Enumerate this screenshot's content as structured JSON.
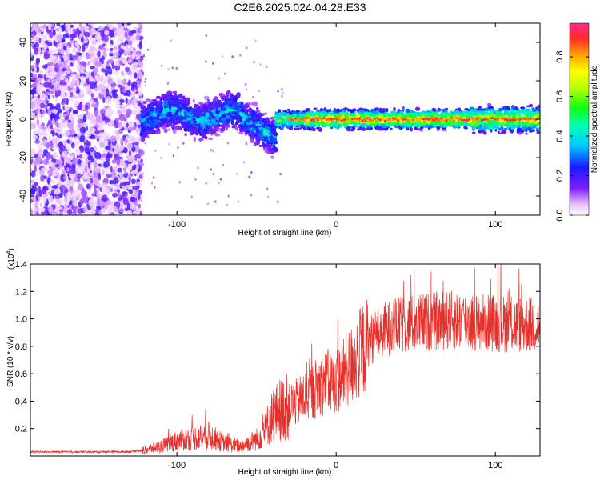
{
  "title": "C2E6.2025.024.04.28.E33",
  "chart_data": [
    {
      "type": "heatmap",
      "xlabel": "Height of straight line (km)",
      "ylabel": "Frequency (Hz)",
      "xlim": [
        -192,
        128
      ],
      "ylim": [
        -50,
        50
      ],
      "xticks": [
        -100,
        0,
        100
      ],
      "yticks": [
        -40,
        -20,
        0,
        20,
        40
      ],
      "colorbar": {
        "label": "Normalized spectral amplitude",
        "range": [
          0,
          0.97
        ],
        "ticks": [
          0.0,
          0.2,
          0.4,
          0.6,
          0.8
        ]
      },
      "features": [
        {
          "region": "noise",
          "x_range": [
            -192,
            -122
          ],
          "freq_range": [
            -50,
            50
          ],
          "amplitude": 0.1
        },
        {
          "region": "band",
          "x_range": [
            -122,
            -38
          ],
          "center_freq": [
            2,
            -6
          ],
          "amplitude": 0.25
        },
        {
          "region": "band",
          "x_range": [
            -38,
            128
          ],
          "center_freq": [
            0,
            0
          ],
          "amplitude": 0.6
        }
      ]
    },
    {
      "type": "line",
      "xlabel": "Height of straight line (km)",
      "ylabel": "SNR (10 * v/v)",
      "y_exponent": "(x10",
      "y_exponent_power": "4",
      "xlim": [
        -192,
        128
      ],
      "ylim": [
        0,
        14000
      ],
      "xticks": [
        -100,
        0,
        100
      ],
      "yticks": [
        2000,
        4000,
        6000,
        8000,
        10000,
        12000,
        14000
      ],
      "ytick_labels": [
        "0.2",
        "0.4",
        "0.6",
        "0.8",
        "1.0",
        "1.2",
        "1.4"
      ],
      "color": "#e8302a",
      "series": [
        {
          "x": [
            -192,
            -160,
            -130,
            -122,
            -110,
            -100,
            -90,
            -80,
            -70,
            -60,
            -50,
            -45,
            -40,
            -35,
            -30,
            -25,
            -20,
            -15,
            -10,
            -5,
            0,
            5,
            10,
            15,
            20,
            25,
            30,
            35,
            40,
            50,
            60,
            70,
            80,
            90,
            100,
            110,
            120,
            128
          ],
          "y": [
            300,
            300,
            320,
            400,
            700,
            1100,
            1300,
            1500,
            900,
            700,
            1200,
            1900,
            2900,
            3400,
            3600,
            3900,
            4300,
            4700,
            5200,
            5400,
            5500,
            6000,
            6700,
            7500,
            8300,
            8800,
            9200,
            9400,
            9500,
            9700,
            9800,
            9900,
            9900,
            9800,
            9700,
            9600,
            9600,
            9500
          ]
        }
      ]
    }
  ]
}
